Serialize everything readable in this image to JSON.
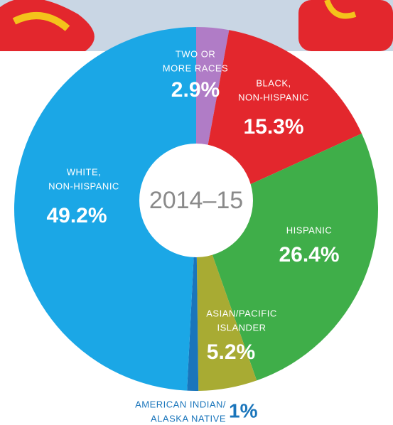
{
  "chart_data": {
    "type": "donut",
    "center_label": "2014–15",
    "labels": [
      [
        "TWO OR",
        "MORE RACES"
      ],
      [
        "BLACK,",
        "NON-HISPANIC"
      ],
      [
        "HISPANIC"
      ],
      [
        "ASIAN/PACIFIC",
        "ISLANDER"
      ],
      [
        "AMERICAN INDIAN/",
        "ALASKA NATIVE"
      ],
      [
        "WHITE,",
        "NON-HISPANIC"
      ]
    ],
    "values": [
      2.9,
      15.3,
      26.4,
      5.2,
      1,
      49.2
    ],
    "value_labels": [
      "2.9%",
      "15.3%",
      "26.4%",
      "5.2%",
      "1%",
      "49.2%"
    ],
    "colors": [
      "#b07cc6",
      "#e3272d",
      "#3fae49",
      "#a8ab33",
      "#1a75bb",
      "#1ba7e6"
    ]
  }
}
